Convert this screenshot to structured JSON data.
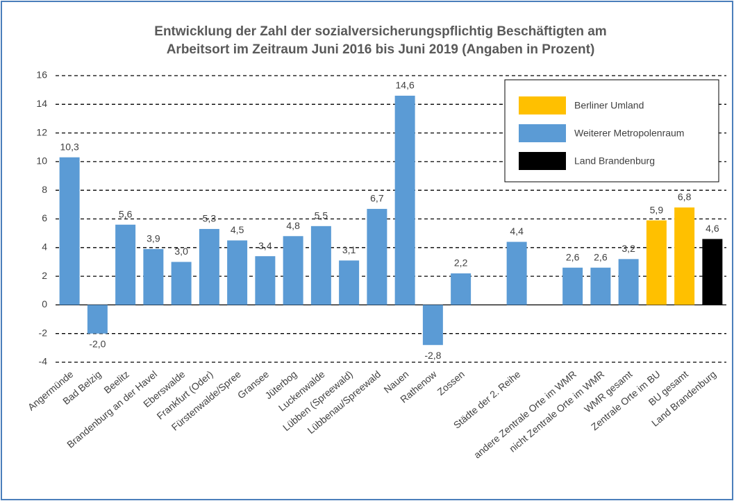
{
  "chart_data": {
    "type": "bar",
    "title": [
      "Entwicklung der Zahl der sozialversicherungspflichtig Beschäftigten am",
      "Arbeitsort im Zeitraum Juni 2016 bis Juni 2019 (Angaben in Prozent)"
    ],
    "categories": [
      "Angermünde",
      "Bad Belzig",
      "Beelitz",
      "Brandenburg an der Havel",
      "Eberswalde",
      "Frankfurt (Oder)",
      "Fürstenwalde/Spree",
      "Gransee",
      "Jüterbog",
      "Luckenwalde",
      "Lübben (Spreewald)",
      "Lübbenau/Spreewald",
      "Nauen",
      "Rathenow",
      "Zossen",
      null,
      "Städte der 2. Reihe",
      null,
      "andere Zentrale Orte im WMR",
      "nicht Zentrale Orte im WMR",
      "WMR gesamt",
      "Zentrale Orte im BU",
      "BU gesamt",
      "Land Brandenburg"
    ],
    "series": [
      {
        "name": "Berliner Umland",
        "color": "#ffc000",
        "values": [
          null,
          null,
          null,
          null,
          null,
          null,
          null,
          null,
          null,
          null,
          null,
          null,
          null,
          null,
          null,
          null,
          null,
          null,
          null,
          null,
          null,
          5.9,
          6.8,
          null
        ],
        "value_labels": [
          null,
          null,
          null,
          null,
          null,
          null,
          null,
          null,
          null,
          null,
          null,
          null,
          null,
          null,
          null,
          null,
          null,
          null,
          null,
          null,
          null,
          "5,9",
          "6,8",
          null
        ]
      },
      {
        "name": "Weiterer Metropolenraum",
        "color": "#5b9bd5",
        "values": [
          10.3,
          -2.0,
          5.6,
          3.9,
          3.0,
          5.3,
          4.5,
          3.4,
          4.8,
          5.5,
          3.1,
          6.7,
          14.6,
          -2.8,
          2.2,
          null,
          4.4,
          null,
          2.6,
          2.6,
          3.2,
          null,
          null,
          null
        ],
        "value_labels": [
          "10,3",
          "-2,0",
          "5,6",
          "3,9",
          "3,0",
          "5,3",
          "4,5",
          "3,4",
          "4,8",
          "5,5",
          "3,1",
          "6,7",
          "14,6",
          "-2,8",
          "2,2",
          null,
          "4,4",
          null,
          "2,6",
          "2,6",
          "3,2",
          null,
          null,
          null
        ]
      },
      {
        "name": "Land Brandenburg",
        "color": "#000000",
        "values": [
          null,
          null,
          null,
          null,
          null,
          null,
          null,
          null,
          null,
          null,
          null,
          null,
          null,
          null,
          null,
          null,
          null,
          null,
          null,
          null,
          null,
          null,
          null,
          4.6
        ],
        "value_labels": [
          null,
          null,
          null,
          null,
          null,
          null,
          null,
          null,
          null,
          null,
          null,
          null,
          null,
          null,
          null,
          null,
          null,
          null,
          null,
          null,
          null,
          null,
          null,
          "4,6"
        ]
      }
    ],
    "ylim": [
      -4,
      16
    ],
    "yticks": [
      -4,
      -2,
      0,
      2,
      4,
      6,
      8,
      10,
      12,
      14,
      16
    ],
    "grid": true,
    "legend": "upper right"
  }
}
